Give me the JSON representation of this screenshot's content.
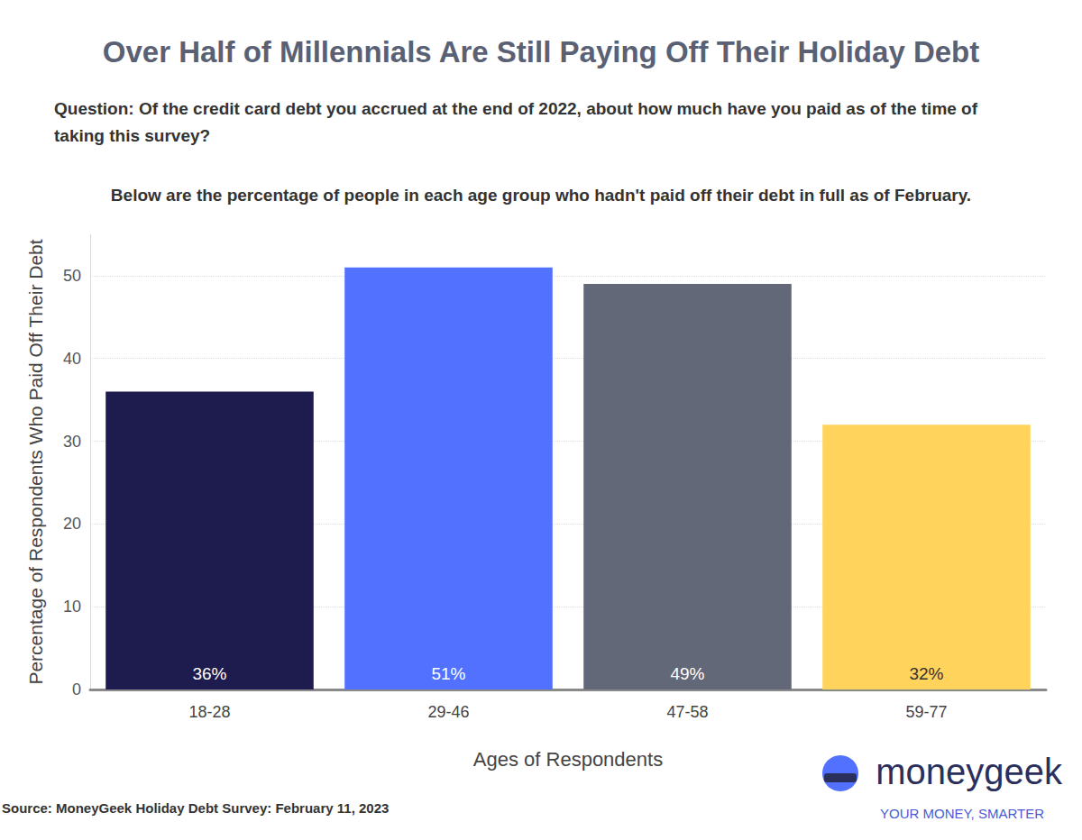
{
  "chart_data": {
    "type": "bar",
    "title": "Over Half of Millennials Are Still Paying Off Their Holiday Debt",
    "subtitle": "Question: Of the credit card debt you accrued at the end of 2022, about how much have you paid as of the time of taking this survey?",
    "annotations": {
      "note": "Below are the percentage of people in each age group who hadn't paid off their debt in full as of February.",
      "source": "Source: MoneyGeek Holiday Debt Survey: February 11, 2023",
      "logo": "moneygeek",
      "tagline": "YOUR MONEY, SMARTER"
    },
    "x_label": "Ages of Respondents",
    "y_label": "Percentage of Respondents Who Paid Off Their Debt",
    "categories": [
      "18-28",
      "29-46",
      "47-58",
      "59-77"
    ],
    "values": [
      36,
      51,
      49,
      32
    ],
    "value_labels": [
      "36%",
      "51%",
      "49%",
      "32%"
    ],
    "colors": [
      "#1e1c4e",
      "#5271ff",
      "#626877",
      "#ffd35c"
    ],
    "ylim": [
      0,
      55
    ],
    "yticks": [
      0,
      10,
      20,
      30,
      40,
      50
    ],
    "grid": true,
    "data_labels": true
  }
}
